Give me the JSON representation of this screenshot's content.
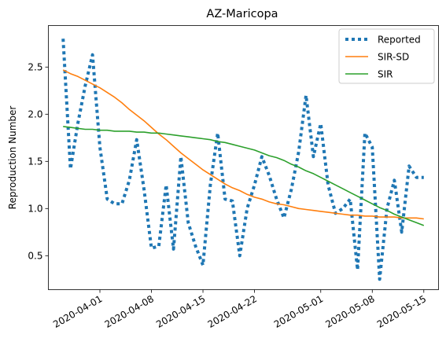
{
  "chart_data": {
    "type": "line",
    "title": "AZ-Maricopa",
    "xlabel": "",
    "ylabel": "Reproduction Number",
    "x_start": "2020-03-27",
    "x_end": "2020-05-15",
    "xlim": [
      "2020-03-25",
      "2020-05-17"
    ],
    "ylim": [
      0.14,
      2.94
    ],
    "x_ticks": [
      "2020-04-01",
      "2020-04-08",
      "2020-04-15",
      "2020-04-22",
      "2020-05-01",
      "2020-05-08",
      "2020-05-15"
    ],
    "y_ticks": [
      0.5,
      1.0,
      1.5,
      2.0,
      2.5
    ],
    "y_tick_labels": [
      "0.5",
      "1.0",
      "1.5",
      "2.0",
      "2.5"
    ],
    "grid": false,
    "legend": "top-right",
    "series": [
      {
        "name": "Reported",
        "color": "#1f77b4",
        "style": "dotted",
        "values": [
          2.8,
          1.42,
          1.9,
          2.3,
          2.63,
          1.65,
          1.1,
          1.05,
          1.05,
          1.3,
          1.73,
          1.2,
          0.58,
          0.6,
          1.25,
          0.57,
          1.55,
          0.85,
          0.6,
          0.4,
          1.25,
          1.8,
          1.1,
          1.08,
          0.5,
          1.0,
          1.25,
          1.55,
          1.35,
          1.1,
          0.9,
          1.2,
          1.6,
          2.2,
          1.55,
          1.9,
          1.25,
          0.95,
          1.0,
          1.1,
          0.35,
          1.8,
          1.65,
          0.25,
          1.0,
          1.3,
          0.75,
          1.45,
          1.33,
          1.33
        ]
      },
      {
        "name": "SIR-SD",
        "color": "#ff7f0e",
        "style": "solid",
        "values": [
          2.47,
          2.43,
          2.4,
          2.36,
          2.32,
          2.28,
          2.23,
          2.18,
          2.12,
          2.05,
          1.99,
          1.93,
          1.86,
          1.79,
          1.73,
          1.66,
          1.59,
          1.53,
          1.47,
          1.41,
          1.36,
          1.31,
          1.26,
          1.22,
          1.19,
          1.15,
          1.12,
          1.1,
          1.07,
          1.05,
          1.04,
          1.02,
          1.0,
          0.99,
          0.98,
          0.97,
          0.96,
          0.95,
          0.94,
          0.93,
          0.93,
          0.92,
          0.92,
          0.91,
          0.91,
          0.91,
          0.9,
          0.9,
          0.9,
          0.89
        ]
      },
      {
        "name": "SIR",
        "color": "#2ca02c",
        "style": "solid",
        "values": [
          1.87,
          1.86,
          1.85,
          1.84,
          1.84,
          1.83,
          1.83,
          1.82,
          1.82,
          1.82,
          1.81,
          1.81,
          1.8,
          1.8,
          1.79,
          1.78,
          1.77,
          1.76,
          1.75,
          1.74,
          1.73,
          1.71,
          1.7,
          1.68,
          1.66,
          1.64,
          1.62,
          1.59,
          1.56,
          1.54,
          1.51,
          1.47,
          1.44,
          1.4,
          1.37,
          1.33,
          1.29,
          1.25,
          1.21,
          1.17,
          1.13,
          1.09,
          1.05,
          1.01,
          0.98,
          0.94,
          0.91,
          0.88,
          0.85,
          0.82
        ]
      }
    ]
  }
}
